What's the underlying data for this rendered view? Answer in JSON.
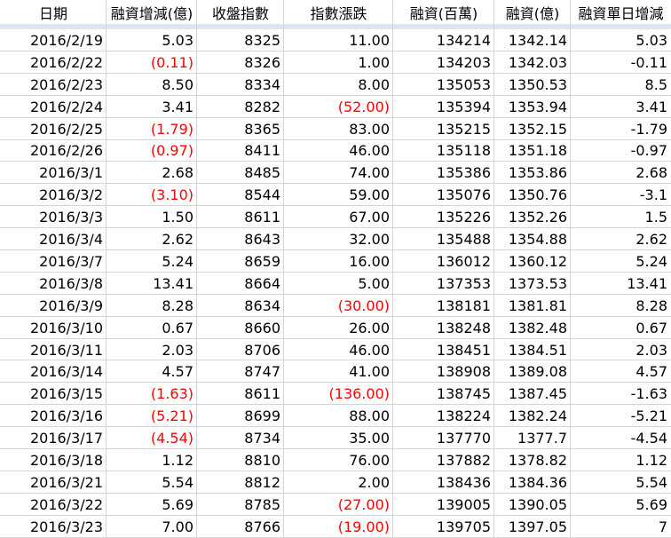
{
  "header": {
    "columns": [
      "日期",
      "融資增減(億)",
      "收盤指數",
      "指數漲跌",
      "融資(百萬)",
      "融資(億)",
      "融資單日增減"
    ]
  },
  "table": {
    "rows": [
      [
        "2016/2/19",
        "5.03",
        "8325",
        "11.00",
        "134214",
        "1342.14",
        "5.03"
      ],
      [
        "2016/2/22",
        "(0.11)",
        "8326",
        "1.00",
        "134203",
        "1342.03",
        "-0.11"
      ],
      [
        "2016/2/23",
        "8.50",
        "8334",
        "8.00",
        "135053",
        "1350.53",
        "8.5"
      ],
      [
        "2016/2/24",
        "3.41",
        "8282",
        "(52.00)",
        "135394",
        "1353.94",
        "3.41"
      ],
      [
        "2016/2/25",
        "(1.79)",
        "8365",
        "83.00",
        "135215",
        "1352.15",
        "-1.79"
      ],
      [
        "2016/2/26",
        "(0.97)",
        "8411",
        "46.00",
        "135118",
        "1351.18",
        "-0.97"
      ],
      [
        "2016/3/1",
        "2.68",
        "8485",
        "74.00",
        "135386",
        "1353.86",
        "2.68"
      ],
      [
        "2016/3/2",
        "(3.10)",
        "8544",
        "59.00",
        "135076",
        "1350.76",
        "-3.1"
      ],
      [
        "2016/3/3",
        "1.50",
        "8611",
        "67.00",
        "135226",
        "1352.26",
        "1.5"
      ],
      [
        "2016/3/4",
        "2.62",
        "8643",
        "32.00",
        "135488",
        "1354.88",
        "2.62"
      ],
      [
        "2016/3/7",
        "5.24",
        "8659",
        "16.00",
        "136012",
        "1360.12",
        "5.24"
      ],
      [
        "2016/3/8",
        "13.41",
        "8664",
        "5.00",
        "137353",
        "1373.53",
        "13.41"
      ],
      [
        "2016/3/9",
        "8.28",
        "8634",
        "(30.00)",
        "138181",
        "1381.81",
        "8.28"
      ],
      [
        "2016/3/10",
        "0.67",
        "8660",
        "26.00",
        "138248",
        "1382.48",
        "0.67"
      ],
      [
        "2016/3/11",
        "2.03",
        "8706",
        "46.00",
        "138451",
        "1384.51",
        "2.03"
      ],
      [
        "2016/3/14",
        "4.57",
        "8747",
        "41.00",
        "138908",
        "1389.08",
        "4.57"
      ],
      [
        "2016/3/15",
        "(1.63)",
        "8611",
        "(136.00)",
        "138745",
        "1387.45",
        "-1.63"
      ],
      [
        "2016/3/16",
        "(5.21)",
        "8699",
        "88.00",
        "138224",
        "1382.24",
        "-5.21"
      ],
      [
        "2016/3/17",
        "(4.54)",
        "8734",
        "35.00",
        "137770",
        "1377.7",
        "-4.54"
      ],
      [
        "2016/3/18",
        "1.12",
        "8810",
        "76.00",
        "137882",
        "1378.82",
        "1.12"
      ],
      [
        "2016/3/21",
        "5.54",
        "8812",
        "2.00",
        "138436",
        "1384.36",
        "5.54"
      ],
      [
        "2016/3/22",
        "5.69",
        "8785",
        "(27.00)",
        "139005",
        "1390.05",
        "5.69"
      ],
      [
        "2016/3/23",
        "7.00",
        "8766",
        "(19.00)",
        "139705",
        "1397.05",
        "7"
      ]
    ]
  }
}
